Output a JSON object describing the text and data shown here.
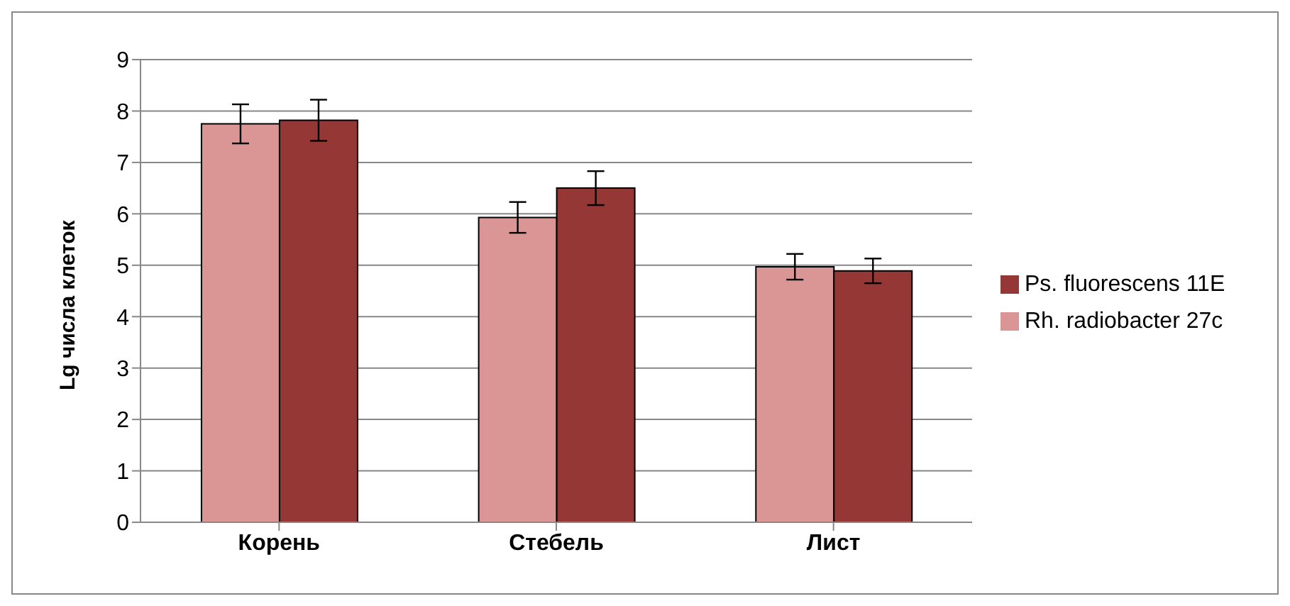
{
  "chart_data": {
    "type": "bar",
    "ylabel": "Lg числа клеток",
    "categories": [
      "Корень",
      "Стебель",
      "Лист"
    ],
    "series": [
      {
        "name": "Rh. radiobacter 27c",
        "color": "#d99694",
        "values": [
          7.75,
          5.93,
          4.97
        ],
        "errors": [
          0.38,
          0.3,
          0.25
        ]
      },
      {
        "name": "Ps. fluorescens 11E",
        "color": "#953735",
        "values": [
          7.82,
          6.5,
          4.89
        ],
        "errors": [
          0.4,
          0.33,
          0.24
        ]
      }
    ],
    "ylim": [
      0,
      9
    ],
    "yticks": [
      0,
      1,
      2,
      3,
      4,
      5,
      6,
      7,
      8,
      9
    ],
    "grid": "y",
    "legend": "right"
  }
}
